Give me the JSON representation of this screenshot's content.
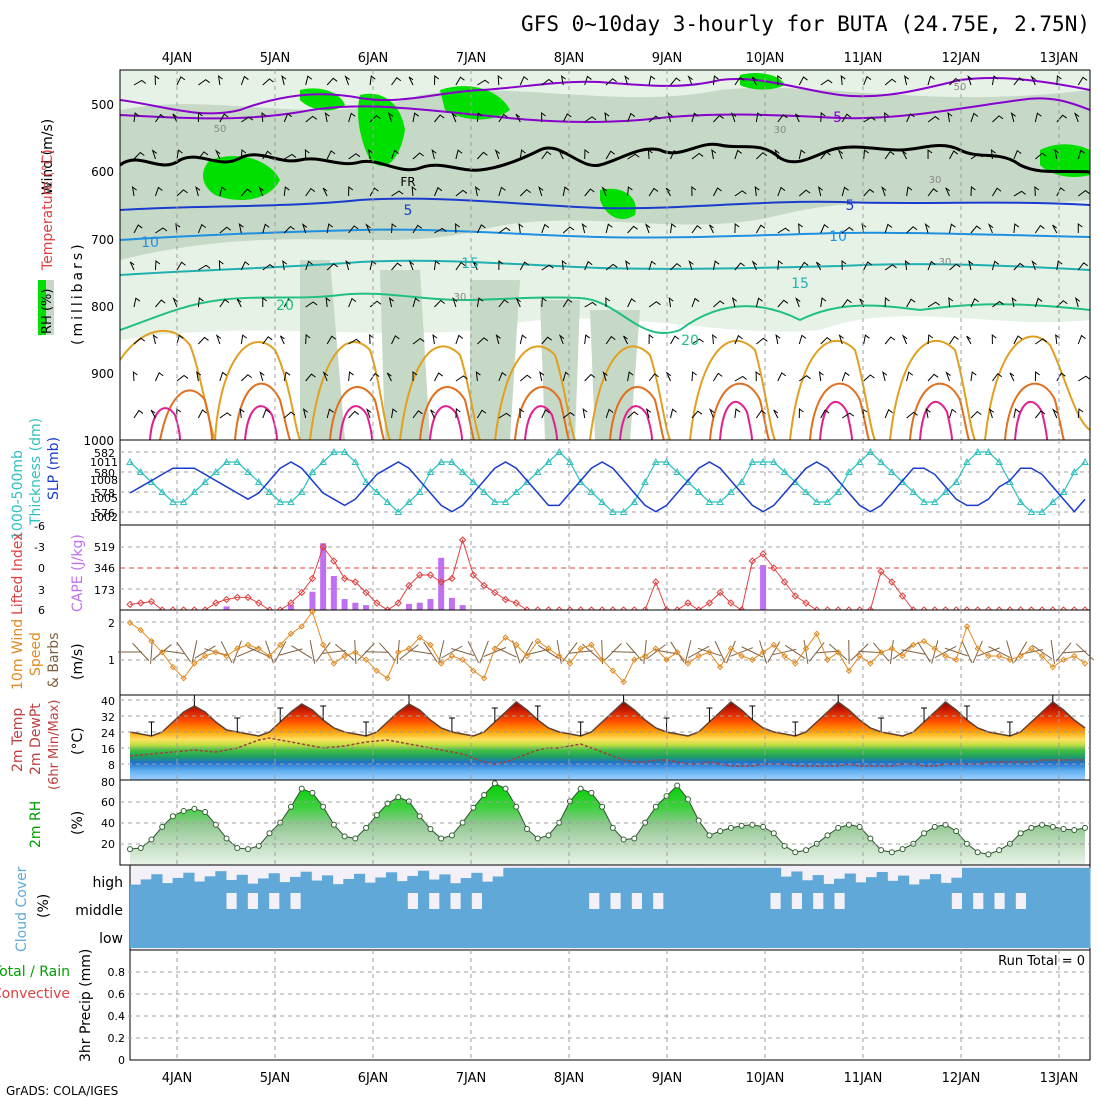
{
  "title": "GFS 0~10day 3-hourly for BUTA (24.75E, 2.75N)",
  "credit": "GrADS: COLA/IGES",
  "dates": [
    "4JAN",
    "5JAN",
    "6JAN",
    "7JAN",
    "8JAN",
    "9JAN",
    "10JAN",
    "11JAN",
    "12JAN",
    "13JAN"
  ],
  "colors": {
    "grid": "#a0a0a0",
    "rh_light": "#e8f4e8",
    "rh_mid": "#c8d8c8",
    "rh_high": "#00e000",
    "temp_neg": "#8800cc",
    "temp_freezing": "#000000",
    "temp_5": "#1a3ccc",
    "temp_10": "#1e90e0",
    "temp_15": "#20b0b0",
    "temp_20": "#20c080",
    "temp_25": "#e0a020",
    "temp_30": "#e07020",
    "temp_35": "#e02090",
    "thickness": "#30c0c0",
    "slp": "#1a3ccc",
    "cape": "#c070f0",
    "lifted_index": "#e04040",
    "wind_speed": "#e08a20",
    "cloud": "#60a8d8",
    "rh2m": "#00c000"
  },
  "panels": {
    "upper": {
      "label_wind": "Wind (m/s)",
      "label_temp": "Temperature (°C)",
      "label_rh": "RH (%)",
      "label_units": "(millibars)",
      "ticks": [
        "500",
        "600",
        "700",
        "800",
        "900",
        "1000"
      ],
      "contour_labels": [
        "-5",
        "FR",
        "5",
        "10",
        "15",
        "20",
        "50",
        "30"
      ]
    },
    "pressure": {
      "label_thick": "1000-500mb",
      "label_thick2": "Thickness (dm)",
      "label_slp": "SLP (mb)",
      "left_ticks": [
        "582",
        "580",
        "578",
        "576"
      ],
      "right_ticks": [
        "1011",
        "1008",
        "1005",
        "1002"
      ]
    },
    "cape": {
      "label_li": "Lifted Index",
      "label_cape": "CAPE (J/kg)",
      "left_ticks": [
        "-6",
        "-3",
        "0",
        "3",
        "6"
      ],
      "right_ticks": [
        "519",
        "346",
        "173"
      ]
    },
    "wind10": {
      "label_1": "10m Wind",
      "label_2": "Speed",
      "label_3": "& Barbs",
      "label_units": "(m/s)",
      "ticks": [
        "2",
        "1"
      ]
    },
    "temp2m": {
      "label_1": "2m Temp",
      "label_2": "2m DewPt",
      "label_3": "(6hr Min/Max)",
      "label_units": "(°C)",
      "ticks": [
        "40",
        "32",
        "24",
        "16",
        "8"
      ]
    },
    "rh2m": {
      "label": "2m RH",
      "label_units": "(%)",
      "ticks": [
        "80",
        "60",
        "40",
        "20"
      ]
    },
    "cloud": {
      "label": "Cloud Cover",
      "label_units": "(%)",
      "levels": [
        "high",
        "middle",
        "low"
      ]
    },
    "precip": {
      "label_1": "Total / Rain",
      "label_2": "Convective",
      "label_3": "3hr Precip (mm)",
      "ticks": [
        "0.8",
        "0.6",
        "0.4",
        "0.2",
        "0"
      ],
      "run_total": "Run Total = 0"
    }
  },
  "chart_data": [
    {
      "type": "line",
      "name": "1000-500mb Thickness",
      "y": [
        581,
        580,
        579,
        578,
        577,
        577,
        578,
        579,
        580,
        581,
        581,
        580,
        579,
        578,
        577,
        577,
        578,
        580,
        581,
        582,
        582,
        581,
        579,
        578,
        577,
        576,
        577,
        578,
        580,
        581,
        581,
        580,
        579,
        578,
        577,
        577,
        578,
        579,
        580,
        581,
        582,
        581,
        579,
        578,
        577,
        576,
        576,
        577,
        579,
        581,
        581,
        580,
        579,
        578,
        577,
        577,
        578,
        579,
        581,
        581,
        581,
        580,
        579,
        578,
        577,
        577,
        578,
        580,
        581,
        582,
        581,
        580,
        579,
        578,
        577,
        577,
        578,
        579,
        581,
        582,
        582,
        581,
        579,
        577,
        576,
        576,
        577,
        578,
        580,
        581
      ]
    },
    {
      "type": "line",
      "name": "SLP",
      "y": [
        1006,
        1007,
        1008,
        1009,
        1010,
        1010,
        1010,
        1009,
        1008,
        1007,
        1006,
        1005,
        1006,
        1008,
        1010,
        1011,
        1010,
        1008,
        1006,
        1005,
        1004,
        1005,
        1007,
        1009,
        1010,
        1011,
        1010,
        1008,
        1006,
        1004,
        1003,
        1004,
        1006,
        1008,
        1010,
        1011,
        1010,
        1008,
        1006,
        1004,
        1004,
        1006,
        1008,
        1010,
        1011,
        1010,
        1008,
        1006,
        1004,
        1003,
        1004,
        1006,
        1008,
        1010,
        1011,
        1010,
        1008,
        1006,
        1004,
        1003,
        1004,
        1006,
        1008,
        1010,
        1011,
        1010,
        1008,
        1006,
        1004,
        1003,
        1004,
        1006,
        1008,
        1010,
        1010,
        1009,
        1007,
        1005,
        1004,
        1004,
        1005,
        1007,
        1008,
        1010,
        1010,
        1009,
        1007,
        1005,
        1003,
        1005
      ]
    },
    {
      "type": "bar",
      "name": "CAPE",
      "y": [
        0,
        0,
        0,
        0,
        0,
        0,
        0,
        0,
        0,
        30,
        0,
        0,
        0,
        0,
        0,
        40,
        0,
        150,
        550,
        280,
        90,
        60,
        40,
        0,
        0,
        0,
        50,
        60,
        90,
        430,
        100,
        40,
        0,
        0,
        0,
        0,
        0,
        0,
        0,
        0,
        0,
        0,
        0,
        0,
        0,
        0,
        0,
        0,
        0,
        0,
        0,
        0,
        0,
        0,
        0,
        0,
        0,
        0,
        0,
        370,
        0,
        0,
        0,
        0,
        0,
        0,
        0,
        0,
        0,
        0,
        0,
        0,
        0,
        0,
        0,
        0,
        0,
        0,
        0,
        0,
        0,
        0,
        0,
        0,
        0,
        0,
        0,
        0,
        0,
        0
      ]
    },
    {
      "type": "line",
      "name": "Lifted Index",
      "y": [
        5.2,
        5,
        4.8,
        6,
        6,
        6,
        6,
        6,
        5,
        4.5,
        4.2,
        4.2,
        5,
        6,
        6,
        5,
        3.5,
        1.5,
        -3,
        -1,
        1.5,
        2,
        3.5,
        5,
        6,
        5,
        2.5,
        1,
        1,
        2,
        1.5,
        -4,
        1,
        2.5,
        3.5,
        4.5,
        5,
        6,
        6,
        6,
        6,
        6,
        6,
        6,
        6,
        6,
        6,
        6,
        6,
        2,
        6,
        6,
        5,
        6,
        5,
        3.5,
        5,
        6,
        -1,
        -2,
        0,
        2,
        4,
        5,
        6,
        6,
        6,
        6,
        6,
        6,
        0.5,
        2,
        4,
        6,
        6,
        6,
        6,
        6,
        6,
        6,
        6,
        6,
        6,
        6,
        6,
        6,
        6,
        6,
        6,
        6
      ]
    },
    {
      "type": "line",
      "name": "10m Wind Speed",
      "y": [
        1.9,
        1.7,
        1.4,
        1.1,
        0.7,
        0.4,
        0.8,
        1.0,
        1.1,
        1.0,
        1.2,
        1.3,
        1.2,
        1.0,
        1.3,
        1.6,
        1.8,
        2.2,
        1.3,
        0.8,
        1.0,
        1.1,
        0.9,
        0.6,
        0.4,
        1.1,
        1.2,
        1.5,
        1.3,
        0.8,
        1.0,
        0.9,
        0.6,
        0.4,
        1.2,
        1.5,
        1.3,
        1.0,
        1.4,
        1.2,
        1.0,
        0.8,
        1.2,
        1.3,
        0.9,
        0.6,
        0.3,
        0.9,
        1.0,
        1.2,
        0.9,
        1.1,
        0.8,
        1.0,
        1.1,
        0.7,
        1.2,
        1.0,
        0.9,
        1.1,
        1.3,
        1.0,
        0.8,
        1.2,
        1.6,
        0.9,
        1.1,
        0.6,
        1.0,
        0.8,
        1.1,
        1.2,
        1.0,
        1.3,
        1.4,
        1.2,
        1.0,
        0.9,
        1.8,
        1.2,
        1.0,
        1.0,
        0.9,
        1.0,
        1.2,
        1.0,
        0.7,
        0.9,
        1.0,
        0.8
      ]
    },
    {
      "type": "area",
      "name": "2m Temp",
      "y": [
        22,
        21,
        20,
        22,
        27,
        32,
        35,
        32,
        27,
        23,
        22,
        21,
        20,
        22,
        27,
        32,
        36,
        33,
        28,
        24,
        22,
        21,
        20,
        22,
        27,
        32,
        36,
        33,
        28,
        24,
        22,
        21,
        20,
        22,
        27,
        32,
        37,
        33,
        28,
        24,
        22,
        21,
        20,
        22,
        27,
        32,
        37,
        33,
        28,
        24,
        22,
        21,
        20,
        22,
        27,
        32,
        37,
        33,
        28,
        24,
        22,
        21,
        20,
        22,
        27,
        32,
        37,
        33,
        28,
        24,
        22,
        21,
        20,
        22,
        27,
        32,
        37,
        33,
        28,
        24,
        22,
        21,
        20,
        22,
        27,
        32,
        37,
        33,
        28,
        24
      ]
    },
    {
      "type": "line",
      "name": "2m DewPt",
      "y": [
        10,
        10.5,
        11,
        11.5,
        12,
        12.5,
        13,
        12.5,
        12,
        13,
        14,
        16,
        18,
        19,
        18,
        17,
        16,
        15,
        14,
        14.5,
        15,
        16,
        17,
        17.5,
        18,
        17,
        16,
        15,
        14,
        13,
        12,
        11,
        9,
        7,
        6,
        7,
        9,
        11,
        13,
        14,
        14,
        15,
        16,
        14,
        12,
        10,
        8,
        7,
        7,
        8,
        8,
        7,
        6,
        6,
        7,
        6,
        5,
        5,
        5,
        6,
        6,
        6,
        5,
        5,
        5,
        5,
        5,
        6,
        5,
        5,
        5,
        5,
        6,
        6,
        5,
        5,
        6,
        6,
        6,
        6,
        7,
        7,
        7,
        7,
        7,
        8,
        8,
        8,
        8,
        8
      ]
    },
    {
      "type": "area",
      "name": "2m RH",
      "y": [
        15,
        16,
        24,
        36,
        46,
        51,
        53,
        50,
        38,
        25,
        16,
        15,
        18,
        30,
        40,
        55,
        72,
        68,
        55,
        38,
        27,
        25,
        35,
        47,
        58,
        64,
        60,
        46,
        34,
        25,
        28,
        40,
        54,
        66,
        77,
        72,
        55,
        34,
        25,
        28,
        40,
        60,
        72,
        68,
        55,
        35,
        24,
        25,
        40,
        55,
        65,
        75,
        62,
        42,
        28,
        32,
        35,
        37,
        38,
        36,
        30,
        18,
        12,
        14,
        20,
        28,
        35,
        38,
        36,
        25,
        14,
        12,
        15,
        20,
        30,
        36,
        38,
        32,
        20,
        12,
        10,
        14,
        20,
        30,
        35,
        38,
        36,
        34,
        33,
        35
      ]
    },
    {
      "type": "line",
      "name": "3hr Precip",
      "y": [
        0,
        0,
        0,
        0,
        0,
        0,
        0,
        0,
        0,
        0,
        0,
        0,
        0,
        0,
        0,
        0,
        0,
        0,
        0,
        0,
        0,
        0,
        0,
        0,
        0,
        0,
        0,
        0,
        0,
        0,
        0,
        0,
        0,
        0,
        0,
        0,
        0,
        0,
        0,
        0,
        0,
        0,
        0,
        0,
        0,
        0,
        0,
        0,
        0,
        0,
        0,
        0,
        0,
        0,
        0,
        0,
        0,
        0,
        0,
        0,
        0,
        0,
        0,
        0,
        0,
        0,
        0,
        0,
        0,
        0,
        0,
        0,
        0,
        0,
        0,
        0,
        0,
        0,
        0,
        0,
        0,
        0,
        0,
        0,
        0,
        0,
        0,
        0,
        0,
        0
      ]
    }
  ]
}
